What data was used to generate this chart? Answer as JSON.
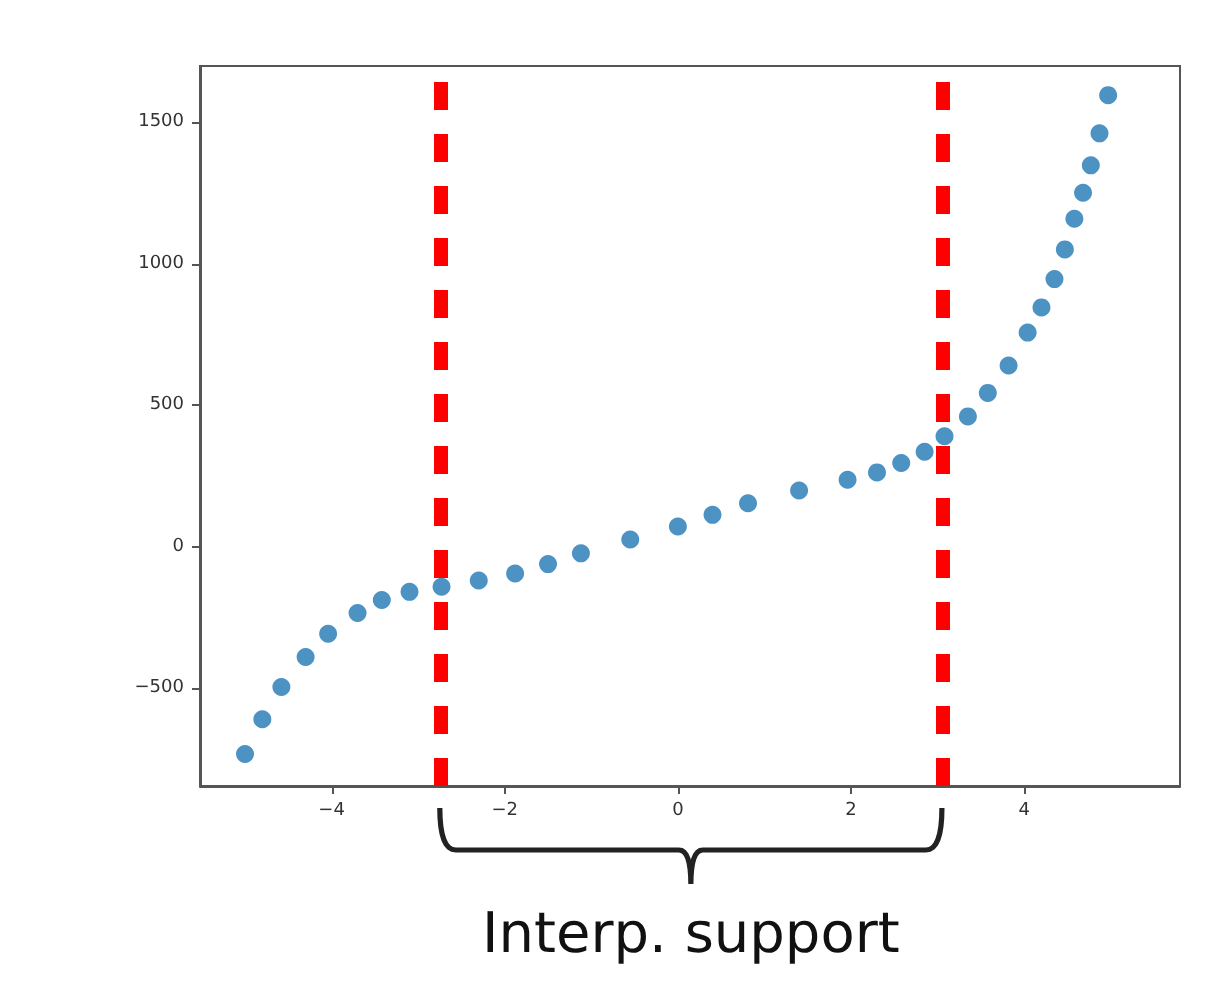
{
  "chart_data": {
    "type": "scatter",
    "marker": "circle",
    "grid": false,
    "x": [
      -5.0,
      -4.8,
      -4.58,
      -4.3,
      -4.04,
      -3.7,
      -3.42,
      -3.1,
      -2.73,
      -2.3,
      -1.88,
      -1.5,
      -1.12,
      -0.55,
      0,
      0.4,
      0.81,
      1.4,
      1.96,
      2.3,
      2.58,
      2.85,
      3.08,
      3.35,
      3.58,
      3.82,
      4.04,
      4.2,
      4.35,
      4.47,
      4.58,
      4.68,
      4.77,
      4.87,
      4.97
    ],
    "series": [
      {
        "color": "#1f77b4",
        "values": [
          -733,
          -610,
          -496,
          -390,
          -308,
          -235,
          -189,
          -160,
          -142,
          -120,
          -95,
          -62,
          -24,
          25,
          71,
          112,
          153,
          198,
          236,
          262,
          295,
          335,
          390,
          460,
          543,
          640,
          756,
          845,
          945,
          1050,
          1158,
          1250,
          1347,
          1460,
          1595
        ]
      }
    ],
    "xlim": [
      -5.52,
      5.8
    ],
    "xticks": [
      -4,
      -2,
      0,
      2,
      4
    ],
    "ylim": [
      -846,
      1698
    ],
    "yticks": [
      -500,
      0,
      500,
      1000,
      1500
    ],
    "ref_lines": [
      {
        "axis": "x",
        "value": -2.75,
        "color": "#ff0000",
        "line_style": "dashed"
      },
      {
        "axis": "x",
        "value": 3.05,
        "color": "#ff0000",
        "line_style": "dashed"
      }
    ],
    "annotations": [
      "Interp. support"
    ]
  }
}
